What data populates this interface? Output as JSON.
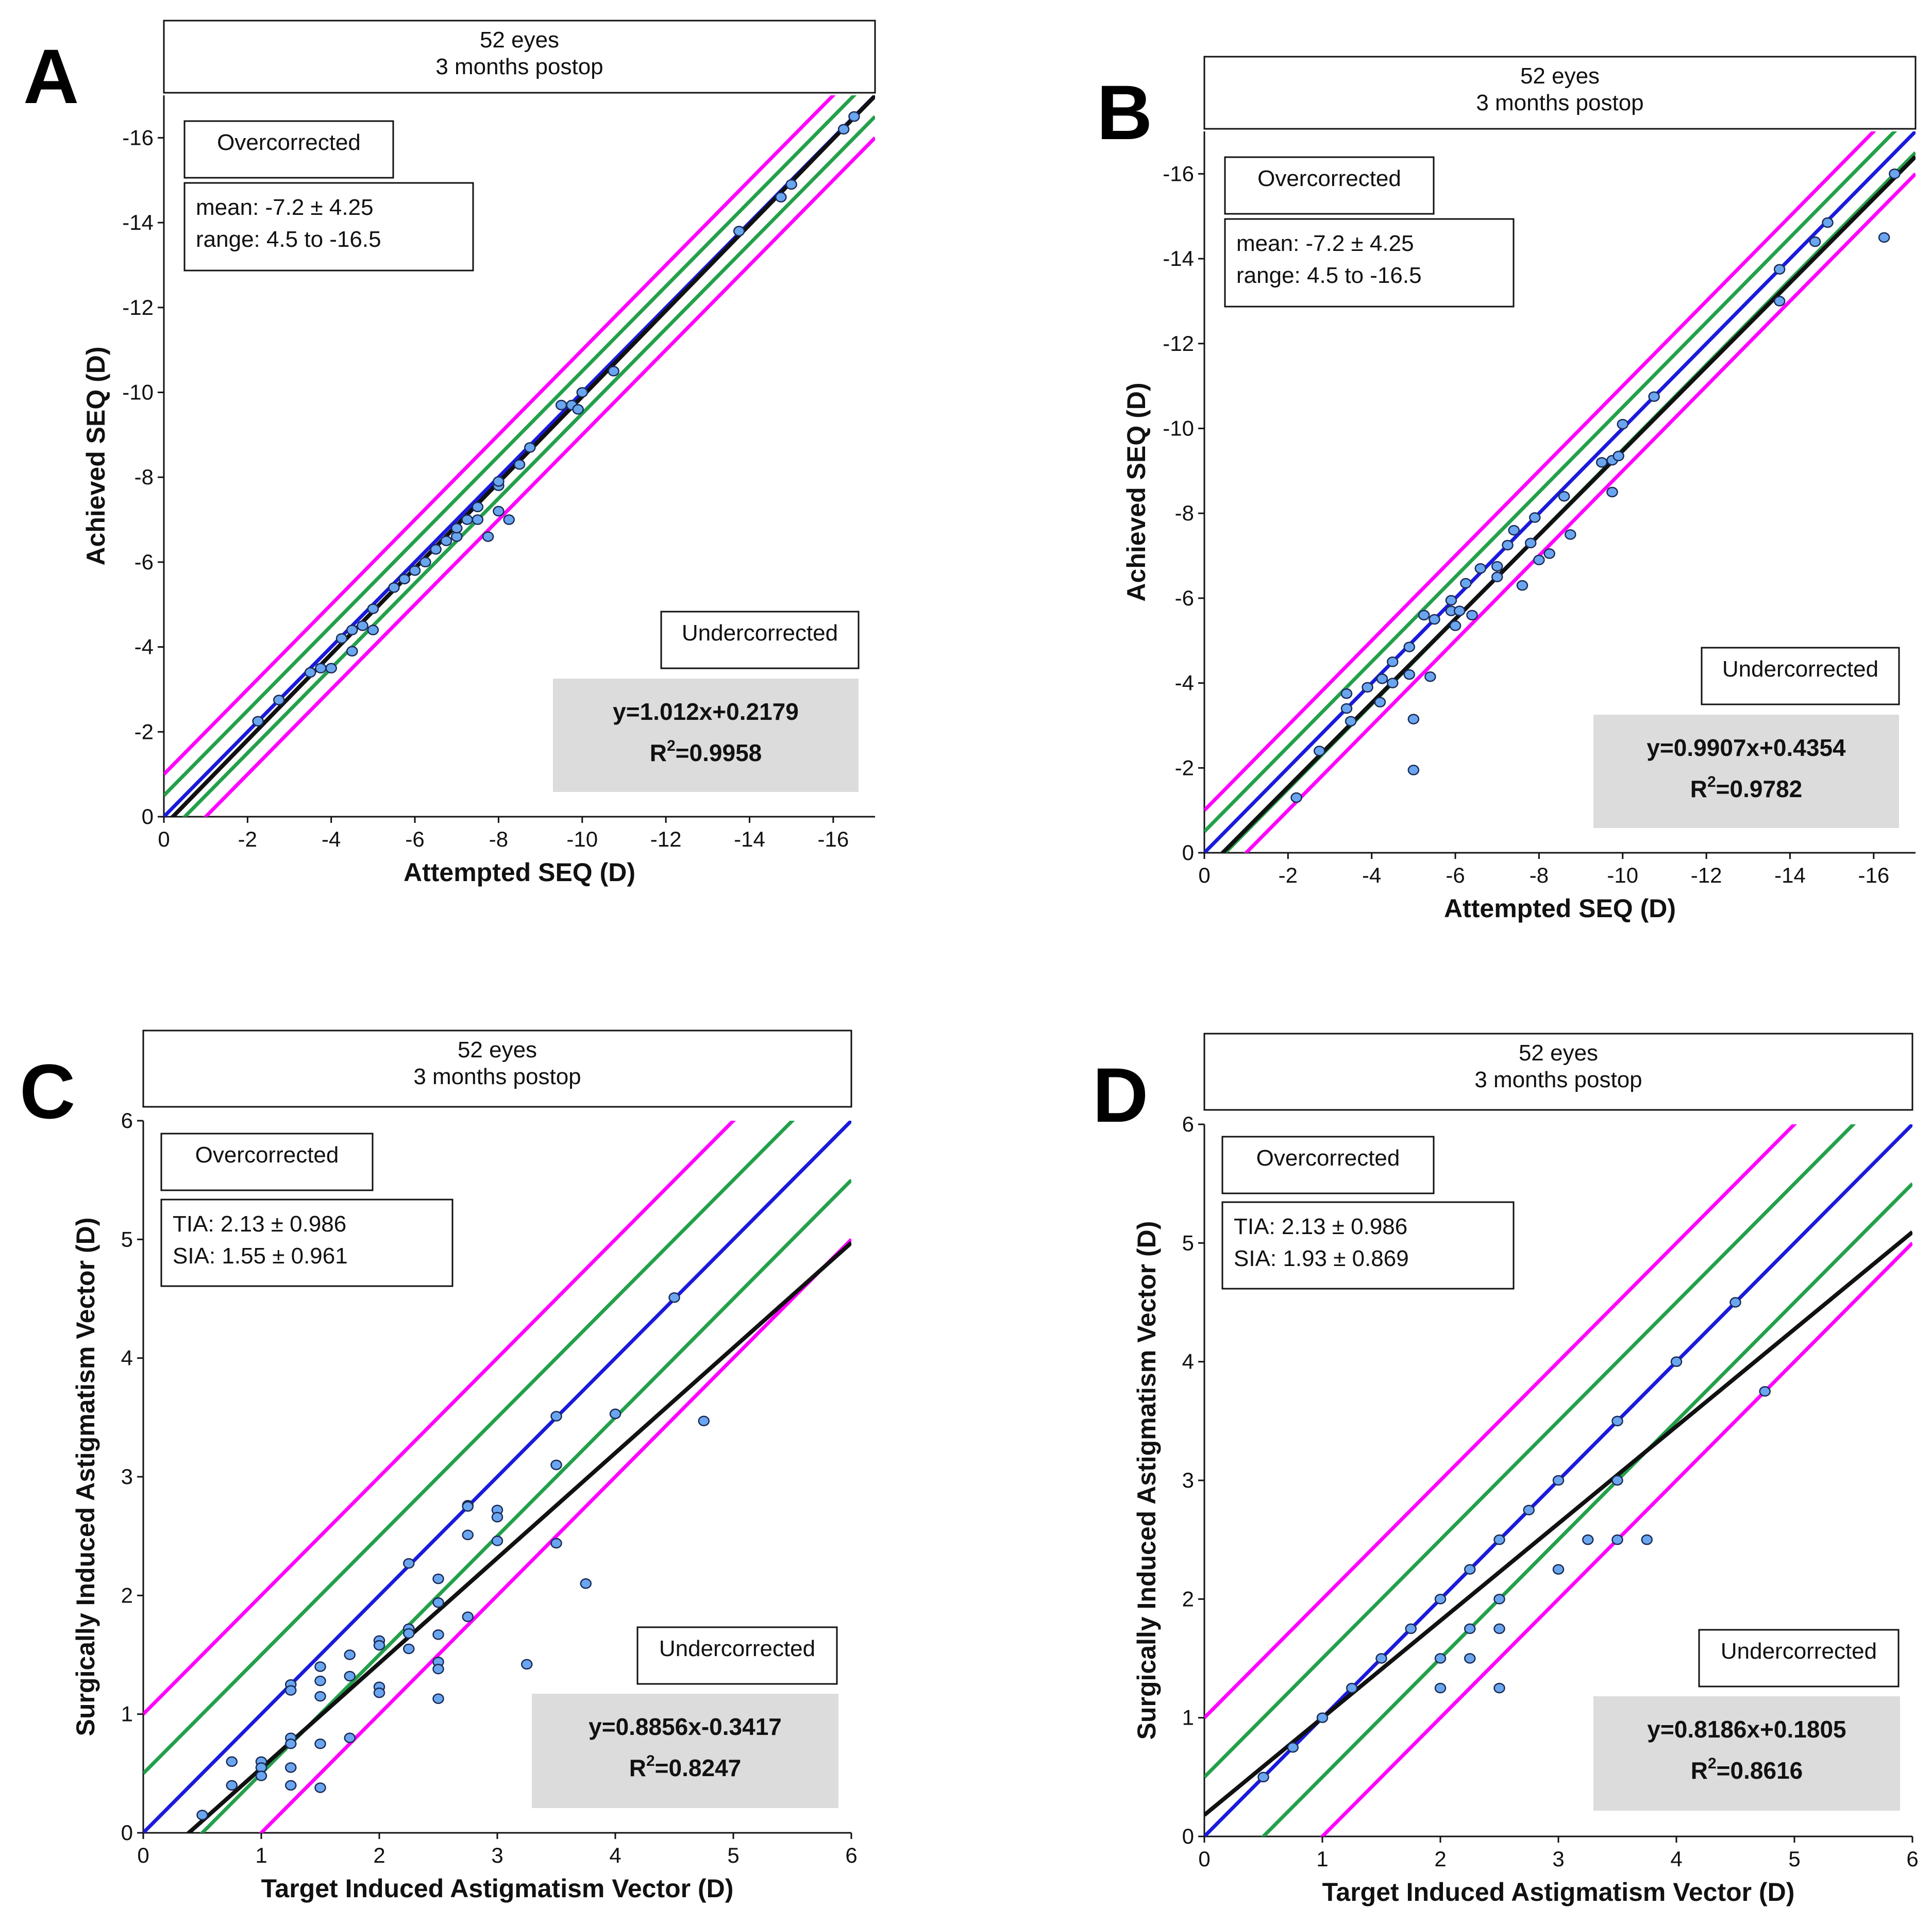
{
  "chart_data": [
    {
      "panel": "A",
      "type": "scatter",
      "title_lines": [
        "52 eyes",
        "3 months postop"
      ],
      "xlabel": "Attempted SEQ (D)",
      "ylabel": "Achieved SEQ (D)",
      "xlim": [
        0,
        -17
      ],
      "ylim": [
        0,
        -17
      ],
      "xticks": [
        0,
        -2,
        -4,
        -6,
        -8,
        -10,
        -12,
        -14,
        -16
      ],
      "yticks": [
        0,
        -2,
        -4,
        -6,
        -8,
        -10,
        -12,
        -14,
        -16
      ],
      "xtick_labels": [
        "0",
        "-2",
        "-4",
        "-6",
        "-8",
        "-10",
        "-12",
        "-14",
        "-16"
      ],
      "ytick_labels": [
        "0",
        "-2",
        "-4",
        "-6",
        "-8",
        "-10",
        "-12",
        "-14",
        "-16"
      ],
      "over_label": "Overcorrected",
      "under_label": "Undercorrected",
      "stats_lines": [
        "mean: -7.2  ± 4.25",
        "range: 4.5 to -16.5"
      ],
      "fit_equation": "y=1.012x+0.2179",
      "r2_label": "R",
      "r2_sup": "2",
      "r2_value": "=0.9958",
      "fit": {
        "slope": 1.012,
        "intercept": 0.2179
      },
      "ref_lines": [
        {
          "offset": 0,
          "color": "#1a1adc"
        },
        {
          "offset": -0.5,
          "color": "#23a04a"
        },
        {
          "offset": 0.5,
          "color": "#23a04a"
        },
        {
          "offset": -1,
          "color": "#ff00ff"
        },
        {
          "offset": 1,
          "color": "#ff00ff"
        }
      ],
      "fit_color": "#111111",
      "point_color": "#6aa6f0",
      "points": [
        [
          -2.25,
          -2.25
        ],
        [
          -2.75,
          -2.75
        ],
        [
          -3.5,
          -3.4
        ],
        [
          -3.75,
          -3.5
        ],
        [
          -4.0,
          -3.5
        ],
        [
          -4.25,
          -4.2
        ],
        [
          -4.5,
          -4.4
        ],
        [
          -4.5,
          -3.9
        ],
        [
          -4.75,
          -4.5
        ],
        [
          -5.0,
          -4.9
        ],
        [
          -5.0,
          -4.4
        ],
        [
          -5.5,
          -5.4
        ],
        [
          -5.75,
          -5.6
        ],
        [
          -6.0,
          -5.8
        ],
        [
          -6.25,
          -6.0
        ],
        [
          -6.5,
          -6.3
        ],
        [
          -6.75,
          -6.5
        ],
        [
          -7.0,
          -6.6
        ],
        [
          -7.0,
          -6.8
        ],
        [
          -7.25,
          -7.0
        ],
        [
          -7.5,
          -7.3
        ],
        [
          -7.5,
          -7.0
        ],
        [
          -7.75,
          -6.6
        ],
        [
          -8.0,
          -7.8
        ],
        [
          -8.0,
          -7.9
        ],
        [
          -8.25,
          -7.0
        ],
        [
          -8.0,
          -7.2
        ],
        [
          -8.5,
          -8.3
        ],
        [
          -8.75,
          -8.7
        ],
        [
          -9.5,
          -9.7
        ],
        [
          -9.75,
          -9.7
        ],
        [
          -10.0,
          -10.0
        ],
        [
          -9.9,
          -9.6
        ],
        [
          -10.75,
          -10.5
        ],
        [
          -13.75,
          -13.8
        ],
        [
          -14.75,
          -14.6
        ],
        [
          -15.0,
          -14.9
        ],
        [
          -16.25,
          -16.2
        ],
        [
          -16.5,
          -16.5
        ]
      ]
    },
    {
      "panel": "B",
      "type": "scatter",
      "title_lines": [
        "52 eyes",
        "3 months postop"
      ],
      "xlabel": "Attempted SEQ (D)",
      "ylabel": "Achieved SEQ (D)",
      "xlim": [
        0,
        -17
      ],
      "ylim": [
        0,
        -17
      ],
      "xticks": [
        0,
        -2,
        -4,
        -6,
        -8,
        -10,
        -12,
        -14,
        -16
      ],
      "yticks": [
        0,
        -2,
        -4,
        -6,
        -8,
        -10,
        -12,
        -14,
        -16
      ],
      "xtick_labels": [
        "0",
        "-2",
        "-4",
        "-6",
        "-8",
        "-10",
        "-12",
        "-14",
        "-16"
      ],
      "ytick_labels": [
        "0",
        "-2",
        "-4",
        "-6",
        "-8",
        "-10",
        "-12",
        "-14",
        "-16"
      ],
      "over_label": "Overcorrected",
      "under_label": "Undercorrected",
      "stats_lines": [
        "mean: -7.2  ± 4.25",
        "range: 4.5 to -16.5"
      ],
      "fit_equation": "y=0.9907x+0.4354",
      "r2_label": "R",
      "r2_sup": "2",
      "r2_value": "=0.9782",
      "fit": {
        "slope": 0.9907,
        "intercept": 0.4354
      },
      "ref_lines": [
        {
          "offset": 0,
          "color": "#1a1adc"
        },
        {
          "offset": -0.5,
          "color": "#23a04a"
        },
        {
          "offset": 0.5,
          "color": "#23a04a"
        },
        {
          "offset": -1,
          "color": "#ff00ff"
        },
        {
          "offset": 1,
          "color": "#ff00ff"
        }
      ],
      "fit_color": "#111111",
      "point_color": "#6aa6f0",
      "points": [
        [
          -2.2,
          -1.3
        ],
        [
          -2.75,
          -2.4
        ],
        [
          -3.4,
          -3.4
        ],
        [
          -3.4,
          -3.75
        ],
        [
          -3.5,
          -3.1
        ],
        [
          -3.9,
          -3.9
        ],
        [
          -4.2,
          -3.55
        ],
        [
          -4.25,
          -4.1
        ],
        [
          -4.5,
          -4.5
        ],
        [
          -4.5,
          -4.0
        ],
        [
          -4.9,
          -4.2
        ],
        [
          -4.9,
          -4.85
        ],
        [
          -5.0,
          -3.15
        ],
        [
          -5.0,
          -1.95
        ],
        [
          -5.25,
          -5.6
        ],
        [
          -5.4,
          -4.15
        ],
        [
          -5.5,
          -5.5
        ],
        [
          -5.9,
          -5.7
        ],
        [
          -5.9,
          -5.95
        ],
        [
          -6.0,
          -5.35
        ],
        [
          -6.1,
          -5.7
        ],
        [
          -6.25,
          -6.35
        ],
        [
          -6.4,
          -5.6
        ],
        [
          -6.6,
          -6.7
        ],
        [
          -7.0,
          -6.75
        ],
        [
          -7.0,
          -6.5
        ],
        [
          -7.25,
          -7.25
        ],
        [
          -7.4,
          -7.6
        ],
        [
          -7.6,
          -6.3
        ],
        [
          -7.8,
          -7.3
        ],
        [
          -7.9,
          -7.9
        ],
        [
          -8.0,
          -6.9
        ],
        [
          -8.25,
          -7.05
        ],
        [
          -8.6,
          -8.4
        ],
        [
          -8.75,
          -7.5
        ],
        [
          -9.5,
          -9.2
        ],
        [
          -9.75,
          -9.25
        ],
        [
          -9.75,
          -8.5
        ],
        [
          -9.9,
          -9.35
        ],
        [
          -10.0,
          -10.1
        ],
        [
          -10.75,
          -10.75
        ],
        [
          -13.75,
          -13.75
        ],
        [
          -13.75,
          -13.0
        ],
        [
          -14.6,
          -14.4
        ],
        [
          -14.9,
          -14.85
        ],
        [
          -16.25,
          -14.5
        ],
        [
          -16.5,
          -16.0
        ]
      ]
    },
    {
      "panel": "C",
      "type": "scatter",
      "title_lines": [
        "52 eyes",
        "3 months postop"
      ],
      "xlabel": "Target Induced Astigmatism Vector (D)",
      "ylabel": "Surgically Induced Astigmatism Vector (D)",
      "xlim": [
        0,
        6
      ],
      "ylim": [
        0,
        6
      ],
      "xticks": [
        0,
        1,
        2,
        3,
        4,
        5,
        6
      ],
      "yticks": [
        0,
        1,
        2,
        3,
        4,
        5,
        6
      ],
      "xtick_labels": [
        "0",
        "1",
        "2",
        "3",
        "4",
        "5",
        "6"
      ],
      "ytick_labels": [
        "0",
        "1",
        "2",
        "3",
        "4",
        "5",
        "6"
      ],
      "over_label": "Overcorrected",
      "under_label": "Undercorrected",
      "stats_lines": [
        "TIA: 2.13  ±  0.986",
        "SIA: 1.55  ±  0.961"
      ],
      "fit_equation": "y=0.8856x-0.3417",
      "r2_label": "R",
      "r2_sup": "2",
      "r2_value": "=0.8247",
      "fit": {
        "slope": 0.8856,
        "intercept": -0.3417
      },
      "ref_lines": [
        {
          "offset": 0,
          "color": "#1a1adc"
        },
        {
          "offset": 0.5,
          "color": "#23a04a"
        },
        {
          "offset": -0.5,
          "color": "#23a04a"
        },
        {
          "offset": 1,
          "color": "#ff00ff"
        },
        {
          "offset": -1,
          "color": "#ff00ff"
        }
      ],
      "fit_color": "#111111",
      "point_color": "#6aa6f0",
      "points": [
        [
          0.5,
          0.15
        ],
        [
          0.75,
          0.6
        ],
        [
          0.75,
          0.4
        ],
        [
          1.0,
          0.6
        ],
        [
          1.0,
          0.55
        ],
        [
          1.0,
          0.48
        ],
        [
          1.25,
          1.25
        ],
        [
          1.25,
          1.2
        ],
        [
          1.25,
          0.8
        ],
        [
          1.25,
          0.75
        ],
        [
          1.25,
          0.55
        ],
        [
          1.25,
          0.4
        ],
        [
          1.5,
          1.4
        ],
        [
          1.5,
          1.28
        ],
        [
          1.5,
          1.15
        ],
        [
          1.5,
          0.75
        ],
        [
          1.5,
          0.38
        ],
        [
          1.75,
          1.5
        ],
        [
          1.75,
          1.32
        ],
        [
          1.75,
          0.8
        ],
        [
          2.0,
          1.62
        ],
        [
          2.0,
          1.58
        ],
        [
          2.0,
          1.23
        ],
        [
          2.0,
          1.18
        ],
        [
          2.25,
          2.27
        ],
        [
          2.25,
          1.72
        ],
        [
          2.25,
          1.68
        ],
        [
          2.25,
          1.55
        ],
        [
          2.5,
          2.14
        ],
        [
          2.5,
          1.94
        ],
        [
          2.5,
          1.67
        ],
        [
          2.5,
          1.44
        ],
        [
          2.5,
          1.38
        ],
        [
          2.5,
          1.13
        ],
        [
          2.75,
          2.76
        ],
        [
          2.75,
          2.75
        ],
        [
          2.75,
          2.51
        ],
        [
          2.75,
          1.82
        ],
        [
          3.0,
          2.72
        ],
        [
          3.0,
          2.66
        ],
        [
          3.0,
          2.46
        ],
        [
          3.25,
          1.42
        ],
        [
          3.5,
          3.51
        ],
        [
          3.5,
          3.1
        ],
        [
          3.5,
          2.44
        ],
        [
          3.75,
          2.1
        ],
        [
          4.0,
          3.53
        ],
        [
          4.5,
          4.51
        ],
        [
          4.75,
          3.47
        ]
      ]
    },
    {
      "panel": "D",
      "type": "scatter",
      "title_lines": [
        "52 eyes",
        "3 months postop"
      ],
      "xlabel": "Target Induced Astigmatism Vector (D)",
      "ylabel": "Surgically Induced Astigmatism Vector (D)",
      "xlim": [
        0,
        6
      ],
      "ylim": [
        0,
        6
      ],
      "xticks": [
        0,
        1,
        2,
        3,
        4,
        5,
        6
      ],
      "yticks": [
        0,
        1,
        2,
        3,
        4,
        5,
        6
      ],
      "xtick_labels": [
        "0",
        "1",
        "2",
        "3",
        "4",
        "5",
        "6"
      ],
      "ytick_labels": [
        "0",
        "1",
        "2",
        "3",
        "4",
        "5",
        "6"
      ],
      "over_label": "Overcorrected",
      "under_label": "Undercorrected",
      "stats_lines": [
        "TIA: 2.13  ±  0.986",
        "SIA: 1.93  ±  0.869"
      ],
      "fit_equation": "y=0.8186x+0.1805",
      "r2_label": "R",
      "r2_sup": "2",
      "r2_value": "=0.8616",
      "fit": {
        "slope": 0.8186,
        "intercept": 0.1805
      },
      "ref_lines": [
        {
          "offset": 0,
          "color": "#1a1adc"
        },
        {
          "offset": 0.5,
          "color": "#23a04a"
        },
        {
          "offset": -0.5,
          "color": "#23a04a"
        },
        {
          "offset": 1,
          "color": "#ff00ff"
        },
        {
          "offset": -1,
          "color": "#ff00ff"
        }
      ],
      "fit_color": "#111111",
      "point_color": "#6aa6f0",
      "points": [
        [
          0.5,
          0.5
        ],
        [
          0.75,
          0.75
        ],
        [
          1.0,
          1.0
        ],
        [
          1.25,
          1.25
        ],
        [
          1.5,
          1.5
        ],
        [
          1.75,
          1.75
        ],
        [
          2.0,
          2.0
        ],
        [
          2.0,
          1.5
        ],
        [
          2.0,
          1.25
        ],
        [
          2.25,
          2.25
        ],
        [
          2.25,
          1.75
        ],
        [
          2.25,
          1.5
        ],
        [
          2.5,
          2.5
        ],
        [
          2.5,
          2.0
        ],
        [
          2.5,
          1.75
        ],
        [
          2.5,
          1.25
        ],
        [
          2.75,
          2.75
        ],
        [
          3.0,
          3.0
        ],
        [
          3.0,
          2.25
        ],
        [
          3.25,
          2.5
        ],
        [
          3.5,
          3.5
        ],
        [
          3.5,
          3.0
        ],
        [
          3.5,
          2.5
        ],
        [
          3.75,
          2.5
        ],
        [
          4.0,
          4.0
        ],
        [
          4.5,
          4.5
        ],
        [
          4.75,
          3.75
        ]
      ]
    }
  ]
}
